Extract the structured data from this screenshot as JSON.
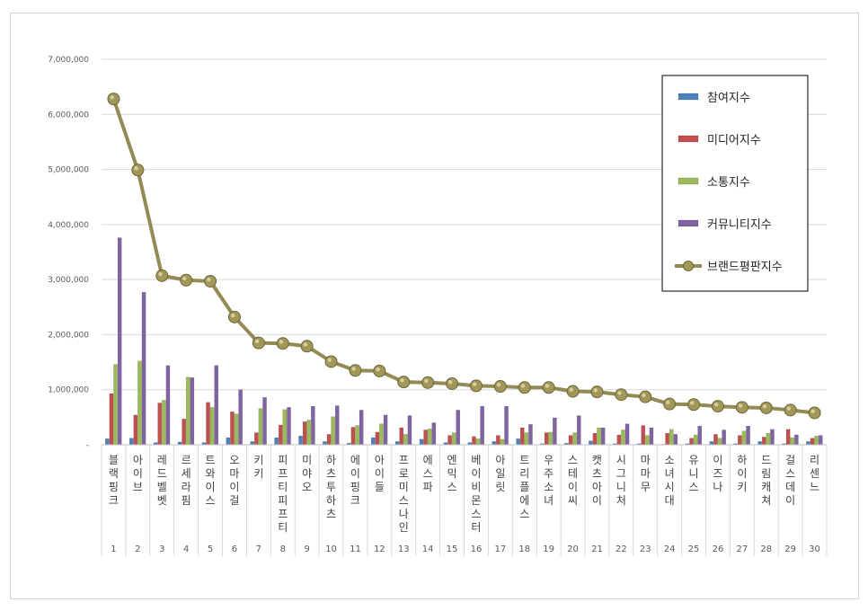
{
  "chart_data": {
    "type": "bar",
    "yticks": [
      "-",
      "1,000,000",
      "2,000,000",
      "3,000,000",
      "4,000,000",
      "5,000,000",
      "6,000,000",
      "7,000,000"
    ],
    "ylim": [
      0,
      7000000
    ],
    "numbers": [
      "1",
      "2",
      "3",
      "4",
      "5",
      "6",
      "7",
      "8",
      "9",
      "10",
      "11",
      "12",
      "13",
      "14",
      "15",
      "16",
      "17",
      "18",
      "19",
      "20",
      "21",
      "22",
      "23",
      "24",
      "25",
      "26",
      "27",
      "28",
      "29",
      "30"
    ],
    "categories": [
      "블랙핑크",
      "아이브",
      "레드벨벳",
      "르세라핌",
      "트와이스",
      "오마이걸",
      "키키",
      "피프티피프티",
      "미야오",
      "하츠투하츠",
      "에이핑크",
      "아이들",
      "프로미스나인",
      "에스파",
      "엔믹스",
      "베이비몬스터",
      "아일릿",
      "트리플에스",
      "우주소녀",
      "스테이씨",
      "캣츠아이",
      "시그니처",
      "마마무",
      "소녀시대",
      "유니스",
      "이즈나",
      "하이키",
      "드림캐쳐",
      "걸스데이",
      "리센느"
    ],
    "series": [
      {
        "name": "참여지수",
        "color": "#4f81bd",
        "kind": "bar",
        "values": [
          110000,
          120000,
          40000,
          50000,
          40000,
          130000,
          60000,
          130000,
          160000,
          60000,
          30000,
          130000,
          60000,
          100000,
          40000,
          40000,
          60000,
          110000,
          20000,
          30000,
          70000,
          20000,
          20000,
          10000,
          20000,
          60000,
          20000,
          60000,
          20000,
          60000
        ]
      },
      {
        "name": "미디어지수",
        "color": "#c0504d",
        "kind": "bar",
        "values": [
          930000,
          540000,
          760000,
          470000,
          770000,
          600000,
          220000,
          360000,
          420000,
          190000,
          320000,
          230000,
          310000,
          270000,
          170000,
          150000,
          170000,
          310000,
          220000,
          170000,
          210000,
          180000,
          350000,
          210000,
          120000,
          190000,
          170000,
          140000,
          280000,
          120000
        ]
      },
      {
        "name": "소통지수",
        "color": "#9bbb59",
        "kind": "bar",
        "values": [
          1460000,
          1520000,
          810000,
          1230000,
          680000,
          560000,
          660000,
          640000,
          450000,
          510000,
          350000,
          380000,
          190000,
          290000,
          220000,
          110000,
          100000,
          220000,
          230000,
          220000,
          310000,
          270000,
          170000,
          280000,
          180000,
          120000,
          250000,
          210000,
          130000,
          160000
        ]
      },
      {
        "name": "커뮤니티지수",
        "color": "#8064a2",
        "kind": "bar",
        "values": [
          3760000,
          2770000,
          1440000,
          1220000,
          1440000,
          1000000,
          860000,
          680000,
          700000,
          710000,
          630000,
          540000,
          530000,
          400000,
          630000,
          700000,
          700000,
          370000,
          490000,
          530000,
          310000,
          380000,
          310000,
          190000,
          340000,
          270000,
          340000,
          280000,
          180000,
          170000
        ]
      },
      {
        "name": "브랜드평판지수",
        "color": "#948a54",
        "kind": "line",
        "values": [
          6280000,
          4990000,
          3070000,
          2990000,
          2970000,
          2320000,
          1850000,
          1840000,
          1790000,
          1510000,
          1350000,
          1340000,
          1140000,
          1130000,
          1110000,
          1070000,
          1060000,
          1040000,
          1040000,
          970000,
          960000,
          910000,
          870000,
          740000,
          730000,
          700000,
          680000,
          670000,
          630000,
          580000
        ]
      }
    ],
    "legend_position": "right",
    "grid": true
  }
}
